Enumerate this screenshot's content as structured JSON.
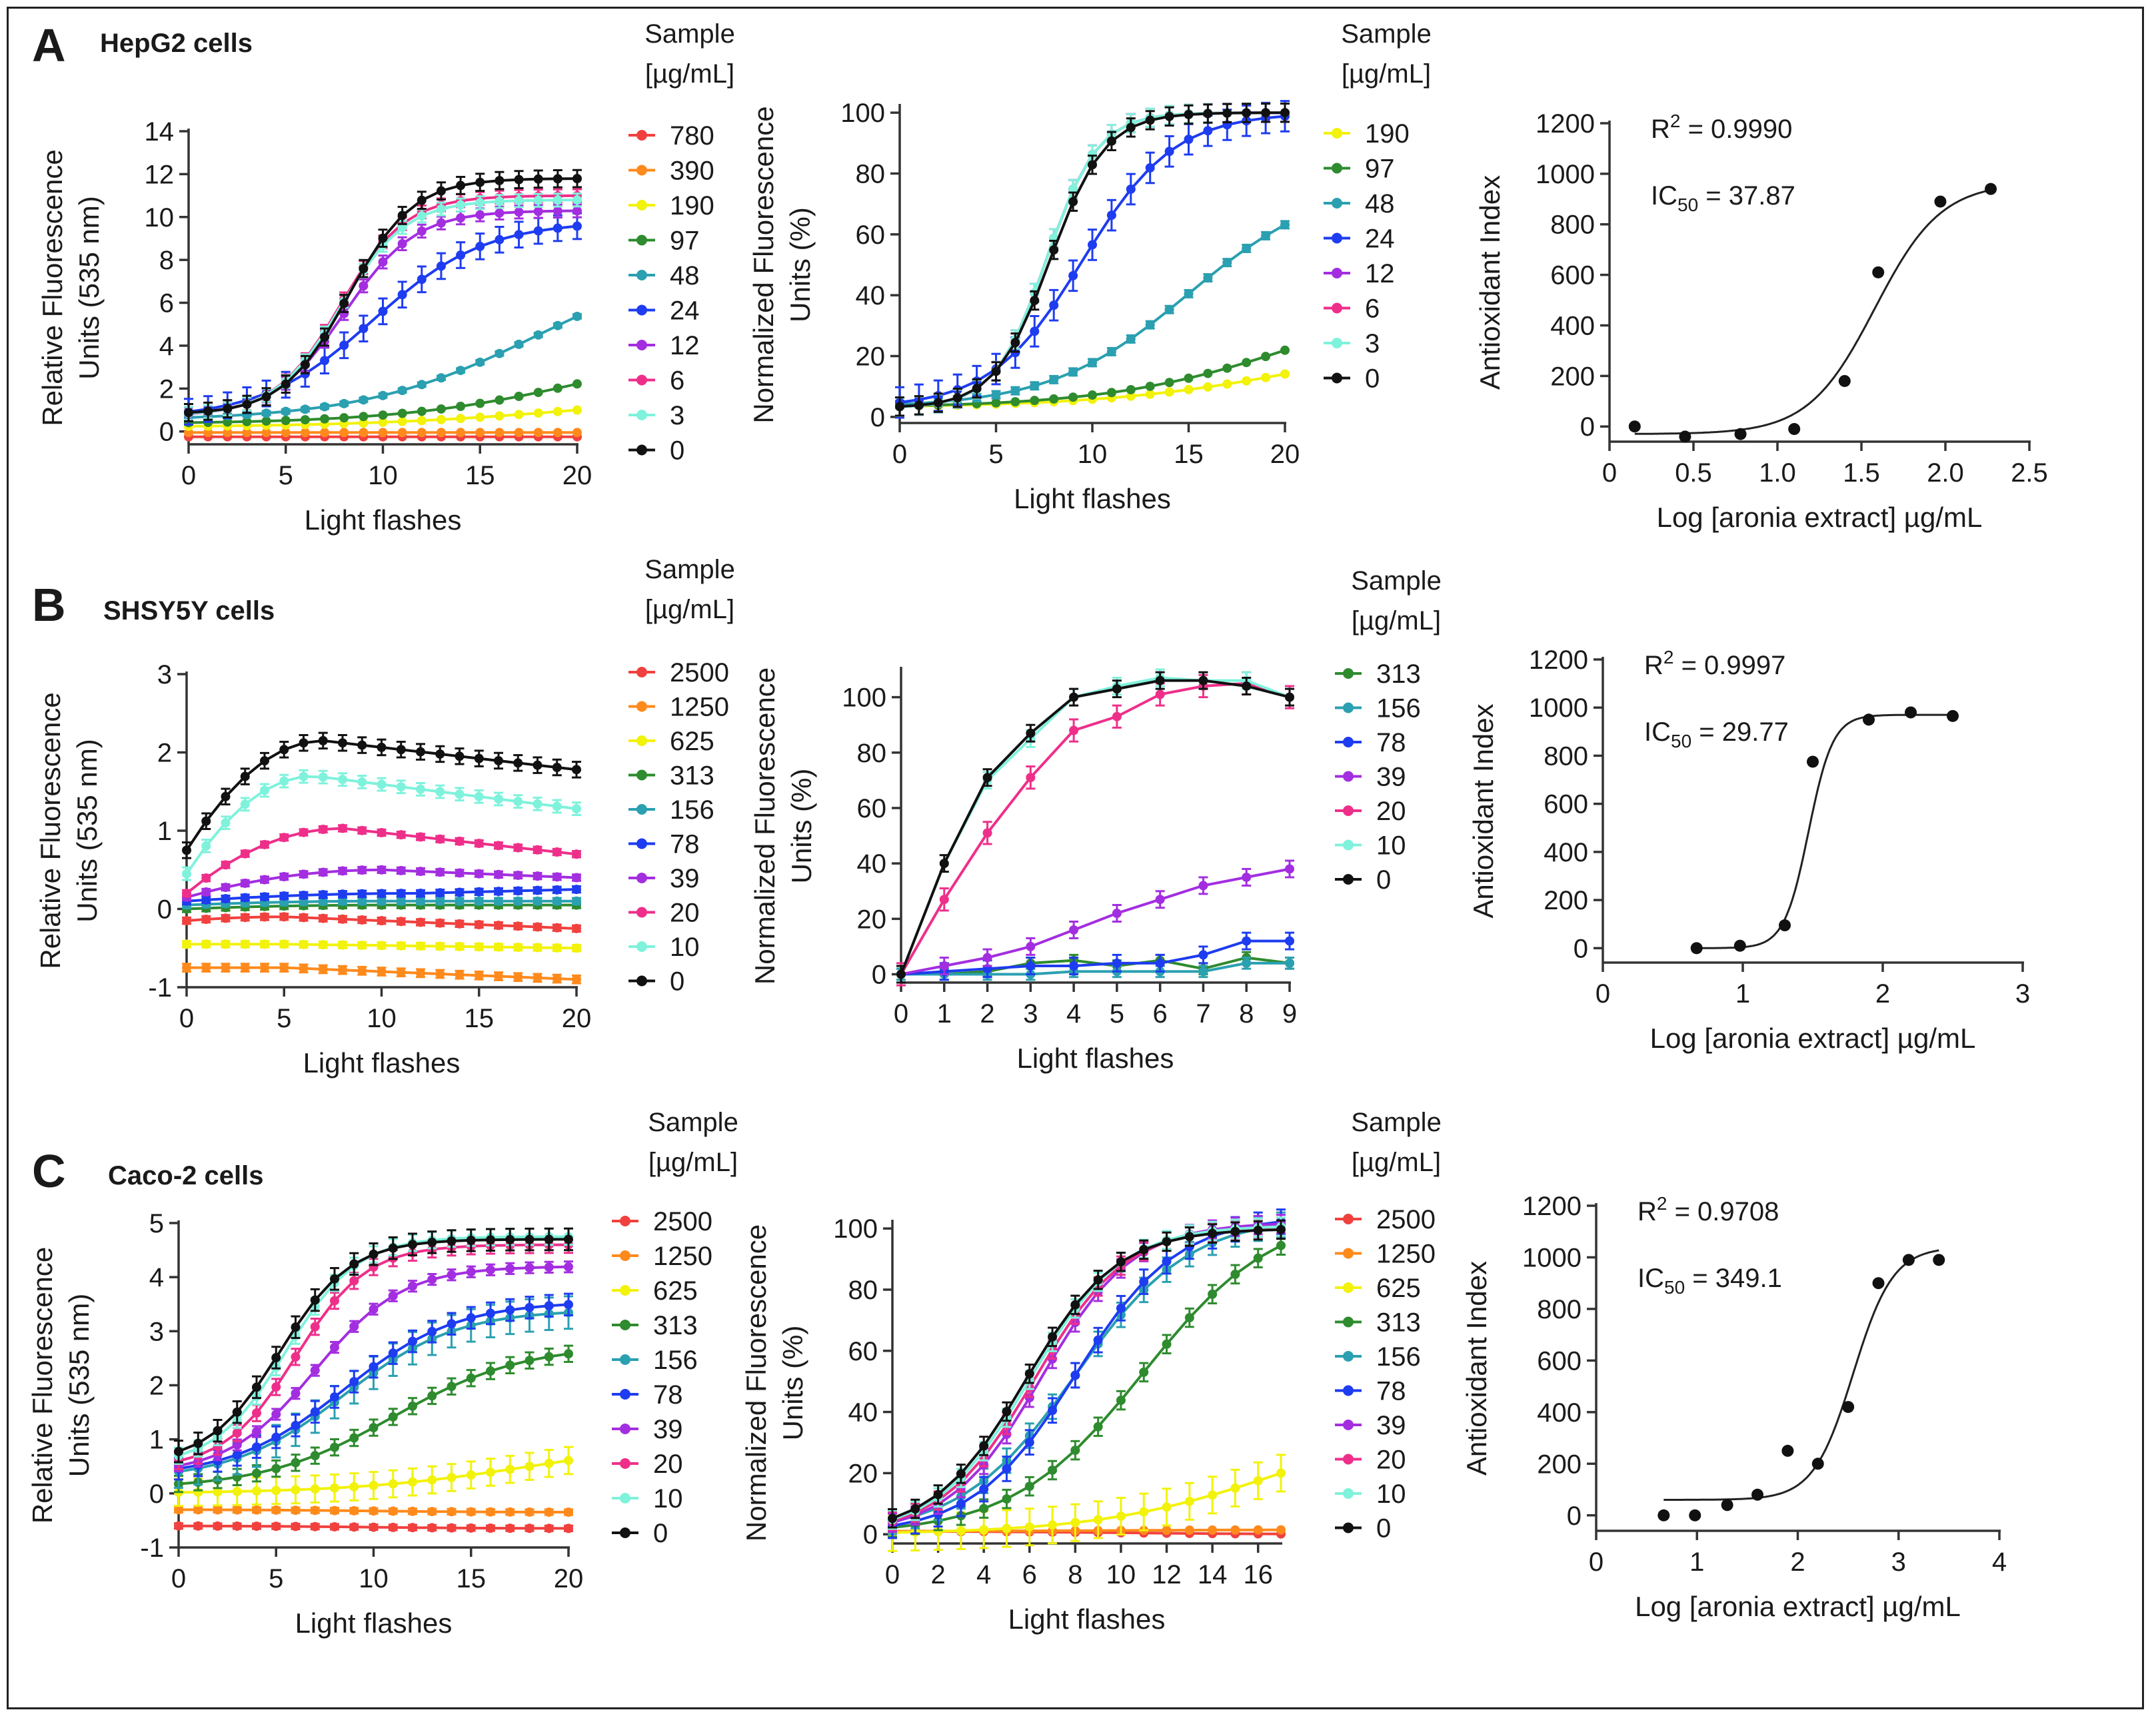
{
  "figure": {
    "panels": [
      {
        "letter": "A",
        "cell_title": "HepG2 cells"
      },
      {
        "letter": "B",
        "cell_title": "SHSY5Y cells"
      },
      {
        "letter": "C",
        "cell_title": "Caco-2 cells"
      }
    ]
  },
  "chart_data": [
    {
      "id": "A1",
      "type": "line",
      "xlabel": "Light  flashes",
      "ylabel_lines": [
        "Relative Fluorescence",
        "Units (535 nm)"
      ],
      "xlim": [
        0,
        20
      ],
      "ylim": [
        -0.6,
        14
      ],
      "xticks": [
        0,
        5,
        10,
        15,
        20
      ],
      "yticks": [
        0,
        2,
        4,
        6,
        8,
        10,
        12,
        14
      ],
      "legend_title": [
        "Sample",
        "[µg/mL]"
      ],
      "series": [
        {
          "name": "780",
          "color": "#f0413e",
          "shape": "sig",
          "start": -0.25,
          "end": -0.25,
          "mid": 10,
          "k": 0.4,
          "err": 0.05
        },
        {
          "name": "390",
          "color": "#ff8a1c",
          "shape": "sig",
          "start": -0.05,
          "end": -0.05,
          "mid": 10,
          "k": 0.4,
          "err": 0.05
        },
        {
          "name": "190",
          "color": "#f2f20a",
          "shape": "sig",
          "start": 0.2,
          "end": 1.8,
          "mid": 20,
          "k": 0.18,
          "err": 0.05
        },
        {
          "name": "97",
          "color": "#2e8b2e",
          "shape": "sig",
          "start": 0.35,
          "end": 4.5,
          "mid": 21,
          "k": 0.2,
          "err": 0.08
        },
        {
          "name": "48",
          "color": "#2aa0b0",
          "shape": "sig",
          "start": 0.5,
          "end": 8.5,
          "mid": 18,
          "k": 0.22,
          "err": 0.1
        },
        {
          "name": "24",
          "color": "#1e3cf0",
          "shape": "sig",
          "start": 0.6,
          "end": 9.8,
          "mid": 9.5,
          "k": 0.35,
          "err": 0.6
        },
        {
          "name": "12",
          "color": "#a32ee0",
          "shape": "sig",
          "start": 0.7,
          "end": 10.3,
          "mid": 8,
          "k": 0.55,
          "err": 0.3
        },
        {
          "name": "6",
          "color": "#ee2f8a",
          "shape": "sig",
          "start": 0.75,
          "end": 11.0,
          "mid": 7.8,
          "k": 0.6,
          "err": 0.3
        },
        {
          "name": "3",
          "color": "#7ff2dc",
          "shape": "sig",
          "start": 0.75,
          "end": 10.8,
          "mid": 7.8,
          "k": 0.6,
          "err": 0.3
        },
        {
          "name": "0",
          "color": "#111111",
          "shape": "sig",
          "start": 0.8,
          "end": 11.8,
          "mid": 8.2,
          "k": 0.6,
          "err": 0.4
        }
      ]
    },
    {
      "id": "A2",
      "type": "line",
      "xlabel": "Light  flashes",
      "ylabel_lines": [
        "Normalized Fluorescence",
        "Units (%)"
      ],
      "xlim": [
        0,
        20
      ],
      "ylim": [
        -2,
        102
      ],
      "xticks": [
        0,
        5,
        10,
        15,
        20
      ],
      "yticks": [
        0,
        20,
        40,
        60,
        80,
        100
      ],
      "legend_title": [
        "Sample",
        "[µg/mL]"
      ],
      "series": [
        {
          "name": "190",
          "color": "#f2f20a",
          "shape": "sig",
          "start": 3,
          "end": 30,
          "mid": 22,
          "k": 0.18,
          "err": 0.3
        },
        {
          "name": "97",
          "color": "#2e8b2e",
          "shape": "sig",
          "start": 3,
          "end": 45,
          "mid": 21,
          "k": 0.2,
          "err": 0.5
        },
        {
          "name": "48",
          "color": "#2aa0b0",
          "shape": "sig",
          "start": 3,
          "end": 78,
          "mid": 15,
          "k": 0.28,
          "err": 1.2
        },
        {
          "name": "24",
          "color": "#1e3cf0",
          "shape": "sig",
          "start": 3,
          "end": 100,
          "mid": 9.5,
          "k": 0.42,
          "err": 5
        },
        {
          "name": "12",
          "color": "#a32ee0",
          "shape": "sig",
          "start": 3,
          "end": 100,
          "mid": 7.6,
          "k": 0.75,
          "err": 3
        },
        {
          "name": "6",
          "color": "#ee2f8a",
          "shape": "sig",
          "start": 3,
          "end": 100,
          "mid": 7.6,
          "k": 0.75,
          "err": 3
        },
        {
          "name": "3",
          "color": "#7ff2dc",
          "shape": "sig",
          "start": 3,
          "end": 100,
          "mid": 7.6,
          "k": 0.75,
          "err": 3
        },
        {
          "name": "0",
          "color": "#111111",
          "shape": "sig",
          "start": 3,
          "end": 100,
          "mid": 7.8,
          "k": 0.7,
          "err": 3
        }
      ]
    },
    {
      "id": "A3",
      "type": "scatter",
      "xlabel": "Log [aronia extract] µg/mL",
      "ylabel_lines": [
        "Antioxidant Index"
      ],
      "xlim": [
        0,
        2.5
      ],
      "ylim": [
        -60,
        1200
      ],
      "xticks": [
        0,
        0.5,
        1,
        1.5,
        2,
        2.5
      ],
      "xtick_labels": [
        "0",
        "0.5",
        "1.0",
        "1.5",
        "2.0",
        "2.5"
      ],
      "yticks": [
        0,
        200,
        400,
        600,
        800,
        1000,
        1200
      ],
      "points": [
        [
          0.15,
          0
        ],
        [
          0.45,
          -40
        ],
        [
          0.78,
          -30
        ],
        [
          1.1,
          -10
        ],
        [
          1.4,
          180
        ],
        [
          1.6,
          610
        ],
        [
          1.97,
          890
        ],
        [
          2.27,
          940
        ]
      ],
      "fit": {
        "bottom": -30,
        "top": 965,
        "logIC50": 1.58,
        "hill": 2.2
      },
      "annotations": [
        "R",
        "2",
        " = 0.9990",
        "IC",
        "50",
        " = 37.87"
      ]
    },
    {
      "id": "B1",
      "type": "line",
      "xlabel": "Light  flashes",
      "ylabel_lines": [
        "Relative Fluorescence",
        "Units (535 nm)"
      ],
      "xlim": [
        0,
        20
      ],
      "ylim": [
        -1,
        3
      ],
      "xticks": [
        0,
        5,
        10,
        15,
        20
      ],
      "yticks": [
        -1,
        0,
        1,
        2,
        3
      ],
      "legend_title": [
        "Sample",
        "[µg/mL]"
      ],
      "series": [
        {
          "name": "2500",
          "color": "#f0413e",
          "shape": "hump",
          "base": -0.15,
          "peak": -0.1,
          "pk": 5,
          "endv": -0.25,
          "err": 0.04
        },
        {
          "name": "1250",
          "color": "#ff8a1c",
          "shape": "hump",
          "base": -0.75,
          "peak": -0.75,
          "pk": 5,
          "endv": -0.9,
          "err": 0.05
        },
        {
          "name": "625",
          "color": "#f2f20a",
          "shape": "hump",
          "base": -0.45,
          "peak": -0.45,
          "pk": 5,
          "endv": -0.5,
          "err": 0.04
        },
        {
          "name": "313",
          "color": "#2e8b2e",
          "shape": "hump",
          "base": 0.0,
          "peak": 0.05,
          "pk": 10,
          "endv": 0.05,
          "err": 0.04
        },
        {
          "name": "156",
          "color": "#2aa0b0",
          "shape": "hump",
          "base": 0.05,
          "peak": 0.1,
          "pk": 10,
          "endv": 0.1,
          "err": 0.04
        },
        {
          "name": "78",
          "color": "#1e3cf0",
          "shape": "hump",
          "base": 0.1,
          "peak": 0.2,
          "pk": 12,
          "endv": 0.25,
          "err": 0.04
        },
        {
          "name": "39",
          "color": "#a32ee0",
          "shape": "hump",
          "base": 0.15,
          "peak": 0.5,
          "pk": 10,
          "endv": 0.4,
          "err": 0.04
        },
        {
          "name": "20",
          "color": "#ee2f8a",
          "shape": "hump",
          "base": 0.2,
          "peak": 1.03,
          "pk": 8,
          "endv": 0.7,
          "err": 0.04
        },
        {
          "name": "10",
          "color": "#7ff2dc",
          "shape": "hump",
          "base": 0.45,
          "peak": 1.7,
          "pk": 6.5,
          "endv": 1.28,
          "err": 0.08
        },
        {
          "name": "0",
          "color": "#111111",
          "shape": "hump",
          "base": 0.75,
          "peak": 2.15,
          "pk": 7,
          "endv": 1.78,
          "err": 0.1
        }
      ]
    },
    {
      "id": "B2",
      "type": "line",
      "xlabel": "Light  flashes",
      "ylabel_lines": [
        "Normalized Fluorescence",
        "Units (%)"
      ],
      "xlim": [
        0,
        9
      ],
      "ylim": [
        -3,
        110
      ],
      "xticks": [
        0,
        1,
        2,
        3,
        4,
        5,
        6,
        7,
        8,
        9
      ],
      "yticks": [
        0,
        20,
        40,
        60,
        80,
        100
      ],
      "legend_title": [
        "Sample",
        "[µg/mL]"
      ],
      "series": [
        {
          "name": "313",
          "color": "#2e8b2e",
          "shape": "pts",
          "y": [
            0,
            0,
            1,
            4,
            5,
            3,
            5,
            2,
            6,
            4
          ],
          "err": 2
        },
        {
          "name": "156",
          "color": "#2aa0b0",
          "shape": "pts",
          "y": [
            0,
            0,
            0,
            0,
            1,
            1,
            1,
            1,
            4,
            4
          ],
          "err": 2
        },
        {
          "name": "78",
          "color": "#1e3cf0",
          "shape": "pts",
          "y": [
            0,
            1,
            2,
            3,
            3,
            4,
            4,
            7,
            12,
            12
          ],
          "err": 3
        },
        {
          "name": "39",
          "color": "#a32ee0",
          "shape": "pts",
          "y": [
            0,
            3,
            6,
            10,
            16,
            22,
            27,
            32,
            35,
            38
          ],
          "err": 3
        },
        {
          "name": "20",
          "color": "#ee2f8a",
          "shape": "pts",
          "y": [
            0,
            27,
            51,
            71,
            88,
            93,
            101,
            104,
            105,
            100
          ],
          "err": 4
        },
        {
          "name": "10",
          "color": "#7ff2dc",
          "shape": "pts",
          "y": [
            0,
            40,
            70,
            85,
            100,
            104,
            107,
            106,
            106,
            100
          ],
          "err": 3
        },
        {
          "name": "0",
          "color": "#111111",
          "shape": "pts",
          "y": [
            0,
            40,
            71,
            87,
            100,
            103,
            106,
            106,
            104,
            100
          ],
          "err": 3
        }
      ]
    },
    {
      "id": "B3",
      "type": "scatter",
      "xlabel": "Log [aronia extract] µg/mL",
      "ylabel_lines": [
        "Antioxidant Index"
      ],
      "xlim": [
        0,
        3
      ],
      "ylim": [
        -60,
        1200
      ],
      "xticks": [
        0,
        1,
        2,
        3
      ],
      "xtick_labels": [
        "0",
        "1",
        "2",
        "3"
      ],
      "yticks": [
        0,
        200,
        400,
        600,
        800,
        1000,
        1200
      ],
      "points": [
        [
          0.67,
          0
        ],
        [
          0.98,
          10
        ],
        [
          1.3,
          95
        ],
        [
          1.5,
          775
        ],
        [
          1.9,
          950
        ],
        [
          2.2,
          980
        ],
        [
          2.5,
          965
        ]
      ],
      "fit": {
        "bottom": 0,
        "top": 970,
        "logIC50": 1.47,
        "hill": 5
      },
      "annotations": [
        "R",
        "2",
        " = 0.9997",
        "IC",
        "50",
        " = 29.77"
      ]
    },
    {
      "id": "C1",
      "type": "line",
      "xlabel": "Light  flashes",
      "ylabel_lines": [
        "Relative Fluorescence",
        "Units (535 nm)"
      ],
      "xlim": [
        0,
        20
      ],
      "ylim": [
        -1,
        5
      ],
      "xticks": [
        0,
        5,
        10,
        15,
        20
      ],
      "yticks": [
        -1,
        0,
        1,
        2,
        3,
        4,
        5
      ],
      "legend_title": [
        "Sample",
        "[µg/mL]"
      ],
      "series": [
        {
          "name": "2500",
          "color": "#f0413e",
          "shape": "sig",
          "start": -0.6,
          "end": -0.65,
          "mid": 10,
          "k": 0.3,
          "err": 0.05
        },
        {
          "name": "1250",
          "color": "#ff8a1c",
          "shape": "sig",
          "start": -0.3,
          "end": -0.35,
          "mid": 10,
          "k": 0.3,
          "err": 0.05
        },
        {
          "name": "625",
          "color": "#f2f20a",
          "shape": "sig",
          "start": 0.0,
          "end": 1.0,
          "mid": 18,
          "k": 0.22,
          "err": 0.25
        },
        {
          "name": "313",
          "color": "#2e8b2e",
          "shape": "sig",
          "start": 0.08,
          "end": 2.75,
          "mid": 11,
          "k": 0.3,
          "err": 0.15
        },
        {
          "name": "156",
          "color": "#2aa0b0",
          "shape": "sig",
          "start": 0.25,
          "end": 3.4,
          "mid": 8.5,
          "k": 0.35,
          "err": 0.3
        },
        {
          "name": "78",
          "color": "#1e3cf0",
          "shape": "sig",
          "start": 0.3,
          "end": 3.55,
          "mid": 8.5,
          "k": 0.35,
          "err": 0.2
        },
        {
          "name": "39",
          "color": "#a32ee0",
          "shape": "sig",
          "start": 0.35,
          "end": 4.2,
          "mid": 7,
          "k": 0.45,
          "err": 0.1
        },
        {
          "name": "20",
          "color": "#ee2f8a",
          "shape": "sig",
          "start": 0.45,
          "end": 4.6,
          "mid": 6,
          "k": 0.55,
          "err": 0.15
        },
        {
          "name": "10",
          "color": "#7ff2dc",
          "shape": "sig",
          "start": 0.5,
          "end": 4.75,
          "mid": 5.5,
          "k": 0.55,
          "err": 0.15
        },
        {
          "name": "0",
          "color": "#111111",
          "shape": "sig",
          "start": 0.55,
          "end": 4.7,
          "mid": 5.2,
          "k": 0.55,
          "err": 0.2
        }
      ]
    },
    {
      "id": "C2",
      "type": "line",
      "xlabel": "Light  flashes",
      "ylabel_lines": [
        "Normalized Fluorescence",
        "Units (%)"
      ],
      "xlim": [
        0,
        17
      ],
      "ylim": [
        -3,
        102
      ],
      "xticks": [
        0,
        2,
        4,
        6,
        8,
        10,
        12,
        14,
        16
      ],
      "yticks": [
        0,
        20,
        40,
        60,
        80,
        100
      ],
      "legend_title": [
        "Sample",
        "[µg/mL]"
      ],
      "series": [
        {
          "name": "2500",
          "color": "#f0413e",
          "shape": "sig",
          "start": 1,
          "end": 0,
          "mid": 10,
          "k": 0.3,
          "err": 0.5
        },
        {
          "name": "1250",
          "color": "#ff8a1c",
          "shape": "sig",
          "start": 1,
          "end": 1.5,
          "mid": 10,
          "k": 0.3,
          "err": 0.5
        },
        {
          "name": "625",
          "color": "#f2f20a",
          "shape": "sig",
          "start": 0,
          "end": 40,
          "mid": 17,
          "k": 0.25,
          "err": 6
        },
        {
          "name": "313",
          "color": "#2e8b2e",
          "shape": "sig",
          "start": 0,
          "end": 106,
          "mid": 11,
          "k": 0.35,
          "err": 3
        },
        {
          "name": "156",
          "color": "#2aa0b0",
          "shape": "sig",
          "start": 0,
          "end": 104,
          "mid": 8,
          "k": 0.4,
          "err": 4
        },
        {
          "name": "78",
          "color": "#1e3cf0",
          "shape": "sig",
          "start": 0,
          "end": 104,
          "mid": 8,
          "k": 0.45,
          "err": 4
        },
        {
          "name": "39",
          "color": "#a32ee0",
          "shape": "sig",
          "start": 0,
          "end": 102,
          "mid": 6.5,
          "k": 0.5,
          "err": 3
        },
        {
          "name": "20",
          "color": "#ee2f8a",
          "shape": "sig",
          "start": 0,
          "end": 101,
          "mid": 6.2,
          "k": 0.5,
          "err": 3
        },
        {
          "name": "10",
          "color": "#7ff2dc",
          "shape": "sig",
          "start": 0,
          "end": 101,
          "mid": 6,
          "k": 0.5,
          "err": 3
        },
        {
          "name": "0",
          "color": "#111111",
          "shape": "sig",
          "start": 0,
          "end": 100,
          "mid": 5.8,
          "k": 0.5,
          "err": 3
        }
      ]
    },
    {
      "id": "C3",
      "type": "scatter",
      "xlabel": "Log [aronia extract] µg/mL",
      "ylabel_lines": [
        "Antioxidant Index"
      ],
      "xlim": [
        0,
        4
      ],
      "ylim": [
        -60,
        1200
      ],
      "xticks": [
        0,
        1,
        2,
        3,
        4
      ],
      "xtick_labels": [
        "0",
        "1",
        "2",
        "3",
        "4"
      ],
      "yticks": [
        0,
        200,
        400,
        600,
        800,
        1000,
        1200
      ],
      "points": [
        [
          0.67,
          0
        ],
        [
          0.98,
          0
        ],
        [
          1.3,
          40
        ],
        [
          1.6,
          80
        ],
        [
          1.9,
          250
        ],
        [
          2.2,
          200
        ],
        [
          2.5,
          420
        ],
        [
          2.8,
          900
        ],
        [
          3.1,
          990
        ],
        [
          3.4,
          990
        ]
      ],
      "fit": {
        "bottom": 60,
        "top": 1040,
        "logIC50": 2.55,
        "hill": 2.2
      },
      "annotations": [
        "R",
        "2",
        " = 0.9708",
        "IC",
        "50",
        " = 349.1"
      ]
    }
  ]
}
